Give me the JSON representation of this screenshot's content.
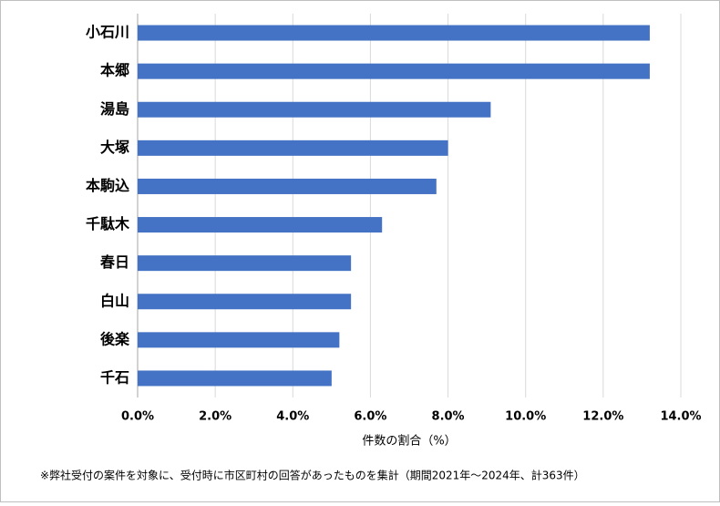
{
  "chart_data": {
    "type": "hbar",
    "categories": [
      "小石川",
      "本郷",
      "湯島",
      "大塚",
      "本駒込",
      "千駄木",
      "春日",
      "白山",
      "後楽",
      "千石"
    ],
    "values": [
      13.2,
      13.2,
      9.1,
      8.0,
      7.7,
      6.3,
      5.5,
      5.5,
      5.2,
      5.0
    ],
    "color": "#4472c4",
    "xlim": [
      0,
      14
    ],
    "xticks": [
      {
        "value": 0,
        "label": "0.0%"
      },
      {
        "value": 2,
        "label": "2.0%"
      },
      {
        "value": 4,
        "label": "4.0%"
      },
      {
        "value": 6,
        "label": "6.0%"
      },
      {
        "value": 8,
        "label": "8.0%"
      },
      {
        "value": 10,
        "label": "10.0%"
      },
      {
        "value": 12,
        "label": "12.0%"
      },
      {
        "value": 14,
        "label": "14.0%"
      }
    ],
    "grid": true,
    "x_label": "件数の割合（%）",
    "note": "※弊社受付の案件を対象に、受付時に市区町村の回答があったものを集計（期間2021年～2024年、計363件）"
  }
}
